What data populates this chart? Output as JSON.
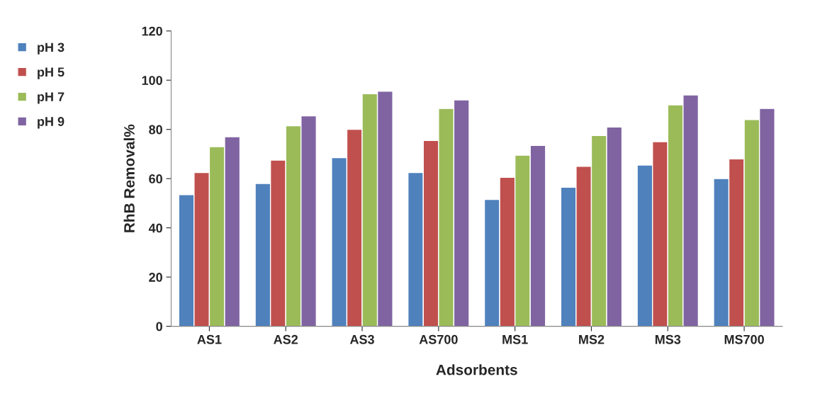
{
  "chart_data": {
    "type": "bar",
    "xlabel": "Adsorbents",
    "ylabel": "RhB Removal%",
    "categories": [
      "AS1",
      "AS2",
      "AS3",
      "AS700",
      "MS1",
      "MS2",
      "MS3",
      "MS700"
    ],
    "series": [
      {
        "name": "pH 3",
        "color": "#4f81bd",
        "values": [
          53.5,
          58,
          68.5,
          62.5,
          51.5,
          56.5,
          65.5,
          60
        ]
      },
      {
        "name": "pH 5",
        "color": "#c0504d",
        "values": [
          62.5,
          67.5,
          80,
          75.5,
          60.5,
          65,
          75,
          68
        ]
      },
      {
        "name": "pH 7",
        "color": "#9bbb59",
        "values": [
          73,
          81.5,
          94.5,
          88.5,
          69.5,
          77.5,
          90,
          84
        ]
      },
      {
        "name": "pH 9",
        "color": "#8064a2",
        "values": [
          77,
          85.5,
          95.5,
          92,
          73.5,
          81,
          94,
          88.5
        ]
      }
    ],
    "ylim": [
      0,
      120
    ],
    "yticks": [
      0,
      20,
      40,
      60,
      80,
      100,
      120
    ],
    "grid": false,
    "legend": "top left"
  }
}
